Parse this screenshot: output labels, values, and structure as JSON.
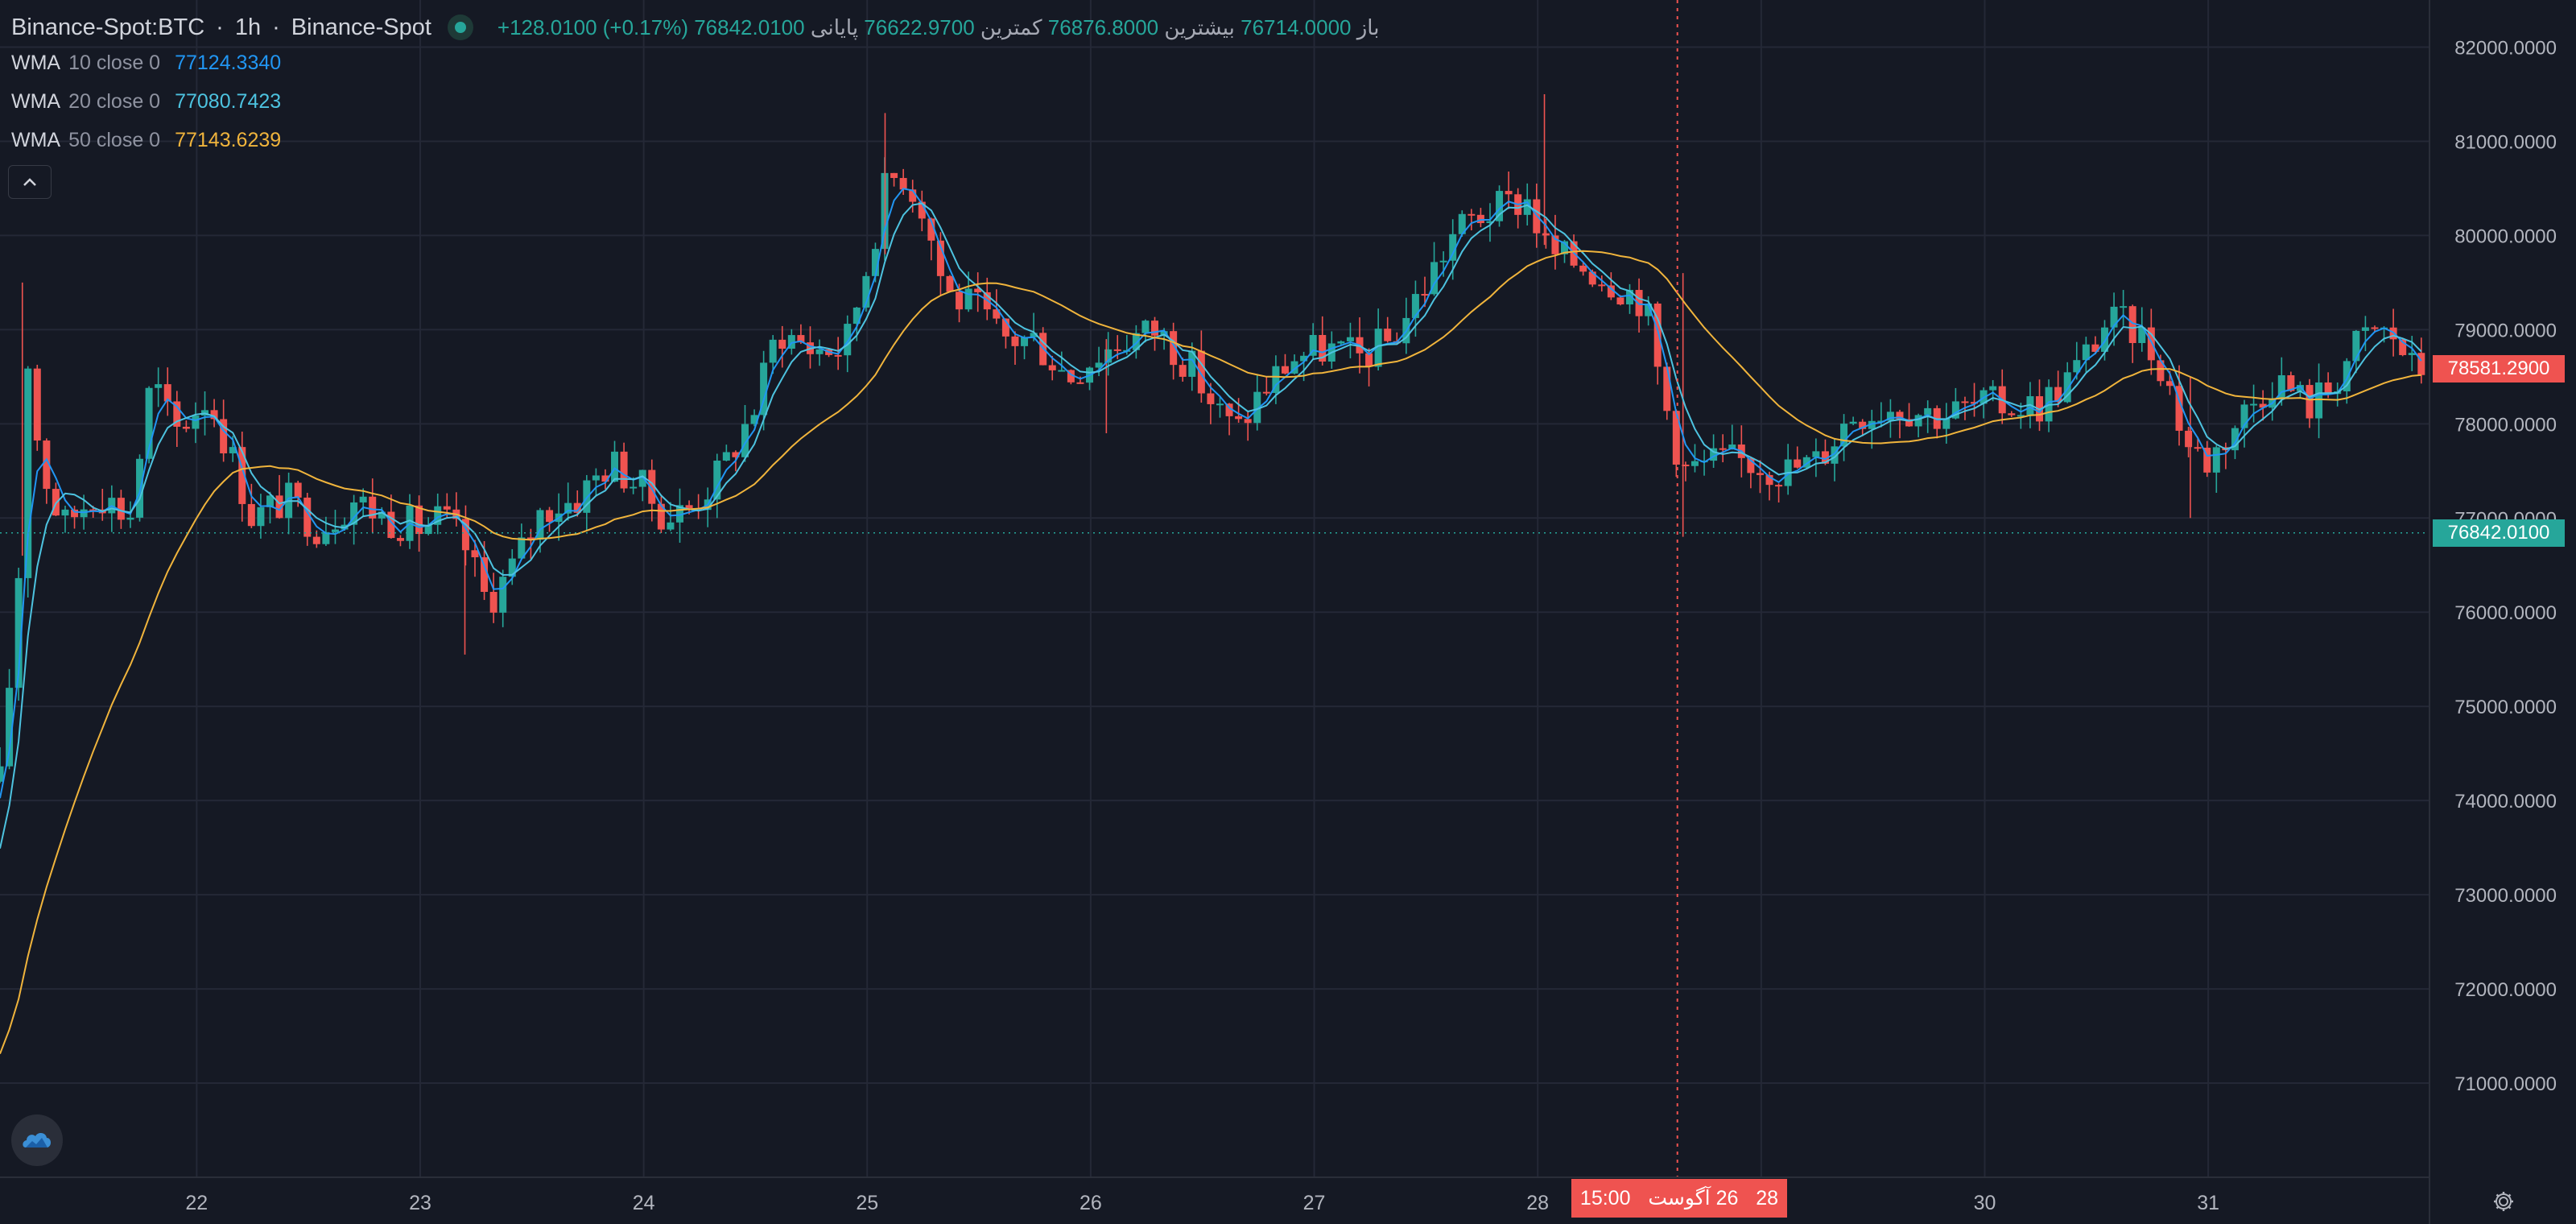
{
  "legend": {
    "symbol": "Binance-Spot:BTC",
    "interval": "1h",
    "exchange": "Binance-Spot",
    "open_label": "باز",
    "open": "76714.0000",
    "high_label": "بیشترین",
    "high": "76876.8000",
    "low_label": "کمترین",
    "low": "76622.9700",
    "close_label": "پایانی",
    "close": "76842.0100",
    "change": "+128.0100 (+0.17%)"
  },
  "indicators": [
    {
      "name": "WMA",
      "params": "10 close 0",
      "value": "77124.3340",
      "color": "#2196f3"
    },
    {
      "name": "WMA",
      "params": "20 close 0",
      "value": "77080.7423",
      "color": "#4dc3e0"
    },
    {
      "name": "WMA",
      "params": "50 close 0",
      "value": "77143.6239",
      "color": "#f0b43c"
    }
  ],
  "colors": {
    "background": "#151924",
    "grid": "#242836",
    "up": "#26a69a",
    "down": "#ef5350",
    "axis_text": "#b2b5be"
  },
  "icons": {
    "status": "status-dot-icon",
    "collapse": "chevron-up-icon",
    "logo": "cloud-logo-icon",
    "settings": "gear-icon"
  },
  "crosshair": {
    "time_label_time": "15:00",
    "time_label_day": "26",
    "time_label_month": "آگوست",
    "time_label_year": "28"
  },
  "price_tags": {
    "last_price": "78581.2900",
    "current_price": "76842.0100"
  },
  "chart_data": {
    "type": "candlestick",
    "ylim": [
      70000,
      82500
    ],
    "y_ticks": [
      "71000.0000",
      "72000.0000",
      "73000.0000",
      "74000.0000",
      "75000.0000",
      "76000.0000",
      "77000.0000",
      "78000.0000",
      "79000.0000",
      "80000.0000",
      "81000.0000",
      "82000.0000"
    ],
    "y_tick_values": [
      71000,
      72000,
      73000,
      74000,
      75000,
      76000,
      77000,
      78000,
      79000,
      80000,
      81000,
      82000
    ],
    "x_ticks": [
      "22",
      "23",
      "24",
      "25",
      "26",
      "27",
      "28",
      "29",
      "30",
      "31"
    ],
    "x_range_days": [
      21.12,
      31.99
    ],
    "close_path": [
      [
        21.12,
        74200
      ],
      [
        21.2,
        76200
      ],
      [
        21.24,
        78800
      ],
      [
        21.3,
        77600
      ],
      [
        21.4,
        76900
      ],
      [
        21.55,
        77300
      ],
      [
        21.7,
        77000
      ],
      [
        21.8,
        78500
      ],
      [
        21.9,
        77900
      ],
      [
        22.05,
        78300
      ],
      [
        22.15,
        77700
      ],
      [
        22.25,
        77000
      ],
      [
        22.4,
        77200
      ],
      [
        22.55,
        76900
      ],
      [
        22.7,
        77200
      ],
      [
        22.85,
        77000
      ],
      [
        23.0,
        76900
      ],
      [
        23.1,
        77000
      ],
      [
        23.2,
        76700
      ],
      [
        23.3,
        76100
      ],
      [
        23.42,
        76500
      ],
      [
        23.55,
        77100
      ],
      [
        23.7,
        77200
      ],
      [
        23.85,
        77600
      ],
      [
        24.0,
        77300
      ],
      [
        24.1,
        77000
      ],
      [
        24.2,
        77100
      ],
      [
        24.35,
        77500
      ],
      [
        24.5,
        78200
      ],
      [
        24.6,
        79000
      ],
      [
        24.75,
        78800
      ],
      [
        24.9,
        78800
      ],
      [
        25.0,
        79700
      ],
      [
        25.08,
        80500
      ],
      [
        25.15,
        80700
      ],
      [
        25.25,
        80300
      ],
      [
        25.35,
        79400
      ],
      [
        25.5,
        79200
      ],
      [
        25.6,
        78900
      ],
      [
        25.75,
        78900
      ],
      [
        25.9,
        78500
      ],
      [
        26.0,
        78700
      ],
      [
        26.15,
        78900
      ],
      [
        26.3,
        79000
      ],
      [
        26.45,
        78600
      ],
      [
        26.55,
        78200
      ],
      [
        26.65,
        77900
      ],
      [
        26.75,
        78300
      ],
      [
        26.9,
        78700
      ],
      [
        27.05,
        78800
      ],
      [
        27.2,
        78700
      ],
      [
        27.35,
        78900
      ],
      [
        27.5,
        79500
      ],
      [
        27.62,
        80000
      ],
      [
        27.72,
        80200
      ],
      [
        27.85,
        80300
      ],
      [
        27.95,
        80400
      ],
      [
        28.05,
        79800
      ],
      [
        28.2,
        79700
      ],
      [
        28.35,
        79500
      ],
      [
        28.48,
        79300
      ],
      [
        28.55,
        78400
      ],
      [
        28.65,
        77500
      ],
      [
        28.8,
        77600
      ],
      [
        28.95,
        77600
      ],
      [
        29.1,
        77500
      ],
      [
        29.25,
        77600
      ],
      [
        29.4,
        78100
      ],
      [
        29.6,
        78200
      ],
      [
        29.8,
        78100
      ],
      [
        30.0,
        78200
      ],
      [
        30.25,
        78200
      ],
      [
        30.42,
        78600
      ],
      [
        30.55,
        79100
      ],
      [
        30.68,
        79000
      ],
      [
        30.8,
        78600
      ],
      [
        30.9,
        77800
      ],
      [
        31.0,
        77600
      ],
      [
        31.15,
        78100
      ],
      [
        31.3,
        78500
      ],
      [
        31.45,
        78200
      ],
      [
        31.55,
        78400
      ],
      [
        31.65,
        78800
      ],
      [
        31.75,
        79000
      ],
      [
        31.85,
        78900
      ],
      [
        31.9,
        78600
      ],
      [
        31.99,
        78580
      ]
    ],
    "series": [
      {
        "name": "WMA 10 close 0",
        "color": "#2196f3",
        "smoothing": 4,
        "start": 73800
      },
      {
        "name": "WMA 20 close 0",
        "color": "#4dc3e0",
        "smoothing": 7,
        "start": 73200
      },
      {
        "name": "WMA 50 close 0",
        "color": "#f0b43c",
        "smoothing": 30,
        "start": 71100
      }
    ],
    "crosshair_day": 28.625,
    "current_price": 76842.01,
    "last_price": 78581.29,
    "spikes": [
      {
        "day": 21.22,
        "high": 79500,
        "low": 76600
      },
      {
        "day": 25.08,
        "high": 81300,
        "low": 79800
      },
      {
        "day": 28.03,
        "high": 81500,
        "low": 79900
      },
      {
        "day": 28.65,
        "high": 79600,
        "low": 76800
      },
      {
        "day": 30.92,
        "high": 78500,
        "low": 77000
      },
      {
        "day": 23.2,
        "high": 76800,
        "low": 75550
      },
      {
        "day": 26.07,
        "high": 78900,
        "low": 77900
      }
    ]
  }
}
